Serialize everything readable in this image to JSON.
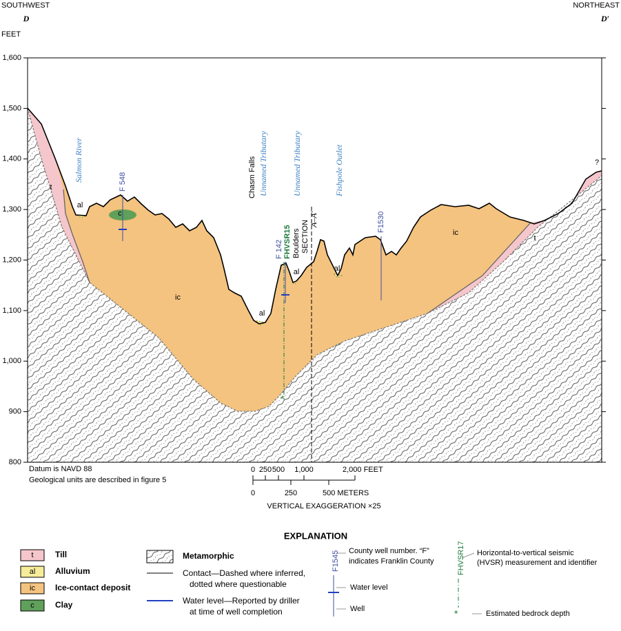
{
  "header": {
    "left_direction": "SOUTHWEST",
    "left_label": "D",
    "right_direction": "NORTHEAST",
    "right_label": "D′"
  },
  "axis": {
    "label": "FEET",
    "ylim": [
      800,
      1600
    ],
    "yticks": [
      800,
      900,
      {
        "value": 1000,
        "label": "1,000"
      },
      {
        "value": 1100,
        "label": "1,100"
      },
      {
        "value": 1200,
        "label": "1,200"
      },
      {
        "value": 1300,
        "label": "1,300"
      },
      {
        "value": 1400,
        "label": "1,400"
      },
      {
        "value": 1500,
        "label": "1,500"
      },
      {
        "value": 1600,
        "label": "1,600"
      }
    ]
  },
  "features": [
    "Salmon River",
    "Chasm Falls",
    "Unnamed Tributary",
    "Unnamed Tributary",
    "Fishpole Outlet"
  ],
  "wells": [
    "F 548",
    "F 142",
    "F1530"
  ],
  "hvsr": "FHVSR15",
  "section": {
    "label": "SECTION",
    "name": "A–A′"
  },
  "units": [
    "t",
    "al",
    "c",
    "ic",
    "al",
    "al",
    "al",
    "ic",
    "t",
    "?"
  ],
  "boulders": "Boulders",
  "notes": [
    "Datum is NAVD 88",
    "Geological units are described in figure 5"
  ],
  "scale": {
    "feet": [
      "0",
      "250",
      "500",
      "1,000",
      "2,000 FEET"
    ],
    "meters": [
      "0",
      "250",
      "500 METERS"
    ],
    "exaggeration": "VERTICAL EXAGGERATION ×25"
  },
  "explanation": {
    "title": "EXPLANATION",
    "units": [
      {
        "symbol": "t",
        "label": "Till"
      },
      {
        "symbol": "al",
        "label": "Alluvium"
      },
      {
        "symbol": "ic",
        "label": "Ice-contact deposit"
      },
      {
        "symbol": "c",
        "label": "Clay"
      }
    ],
    "metamorphic": "Metamorphic",
    "contact": [
      "Contact—Dashed where inferred,",
      "dotted where questionable"
    ],
    "water_level": [
      "Water level—Reported by driller",
      "at time of well completion"
    ],
    "well": {
      "id": "F1545",
      "desc": [
        "County well number. “F”",
        "indicates Franklin County"
      ],
      "water": "Water level",
      "well": "Well"
    },
    "hvsr": {
      "id": "FHVSR17",
      "desc": [
        "Horizontal-to-vertical seismic",
        "(HVSR) measurement and identifier"
      ],
      "bedrock": "Estimated bedrock depth"
    }
  }
}
